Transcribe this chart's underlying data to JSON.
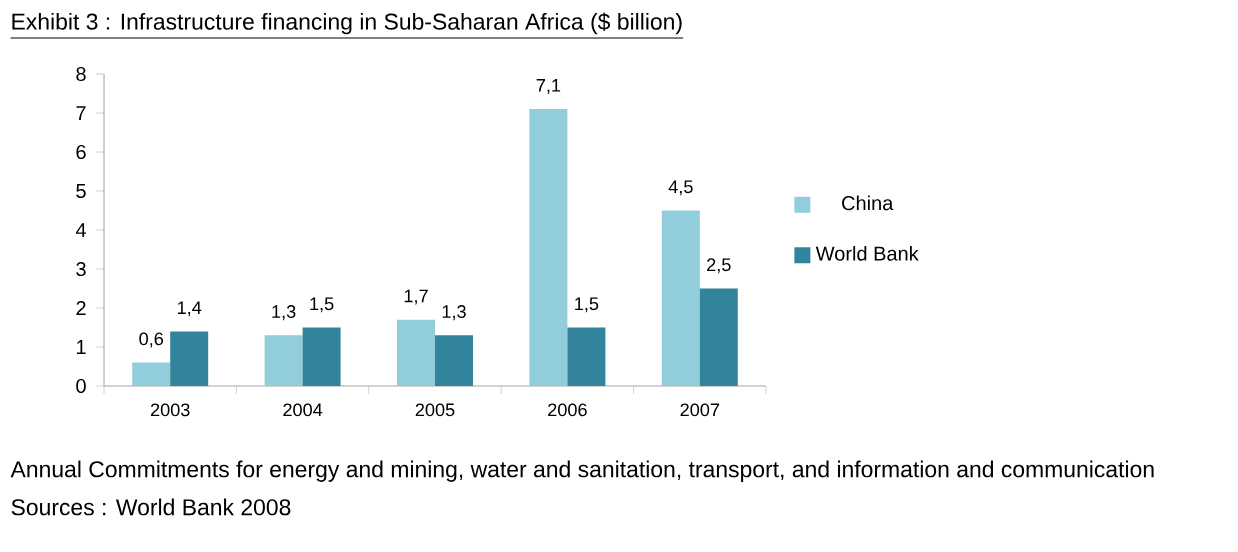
{
  "chart_data": {
    "type": "bar",
    "title": "Exhibit 3 : Infrastructure  financing in Sub-Saharan  Africa ($ billion)",
    "categories": [
      "2003",
      "2004",
      "2005",
      "2006",
      "2007"
    ],
    "series": [
      {
        "name": "China",
        "color": "#92cddc",
        "values": [
          0.6,
          1.3,
          1.7,
          7.1,
          4.5
        ],
        "value_labels": [
          "0,6",
          "1,3",
          "1,7",
          "7,1",
          "4,5"
        ]
      },
      {
        "name": "World Bank",
        "color": "#31849b",
        "values": [
          1.4,
          1.5,
          1.3,
          1.5,
          2.5
        ],
        "value_labels": [
          "1,4",
          "1,5",
          "1,3",
          "1,5",
          "2,5"
        ]
      }
    ],
    "ylim": [
      0,
      8
    ],
    "yticks": [
      0,
      1,
      2,
      3,
      4,
      5,
      6,
      7,
      8
    ],
    "legend": "right",
    "annotations": [
      "Annual Commitments for energy and mining, water and sanitation, transport, and information and communication",
      "Sources : World Bank 2008"
    ]
  }
}
